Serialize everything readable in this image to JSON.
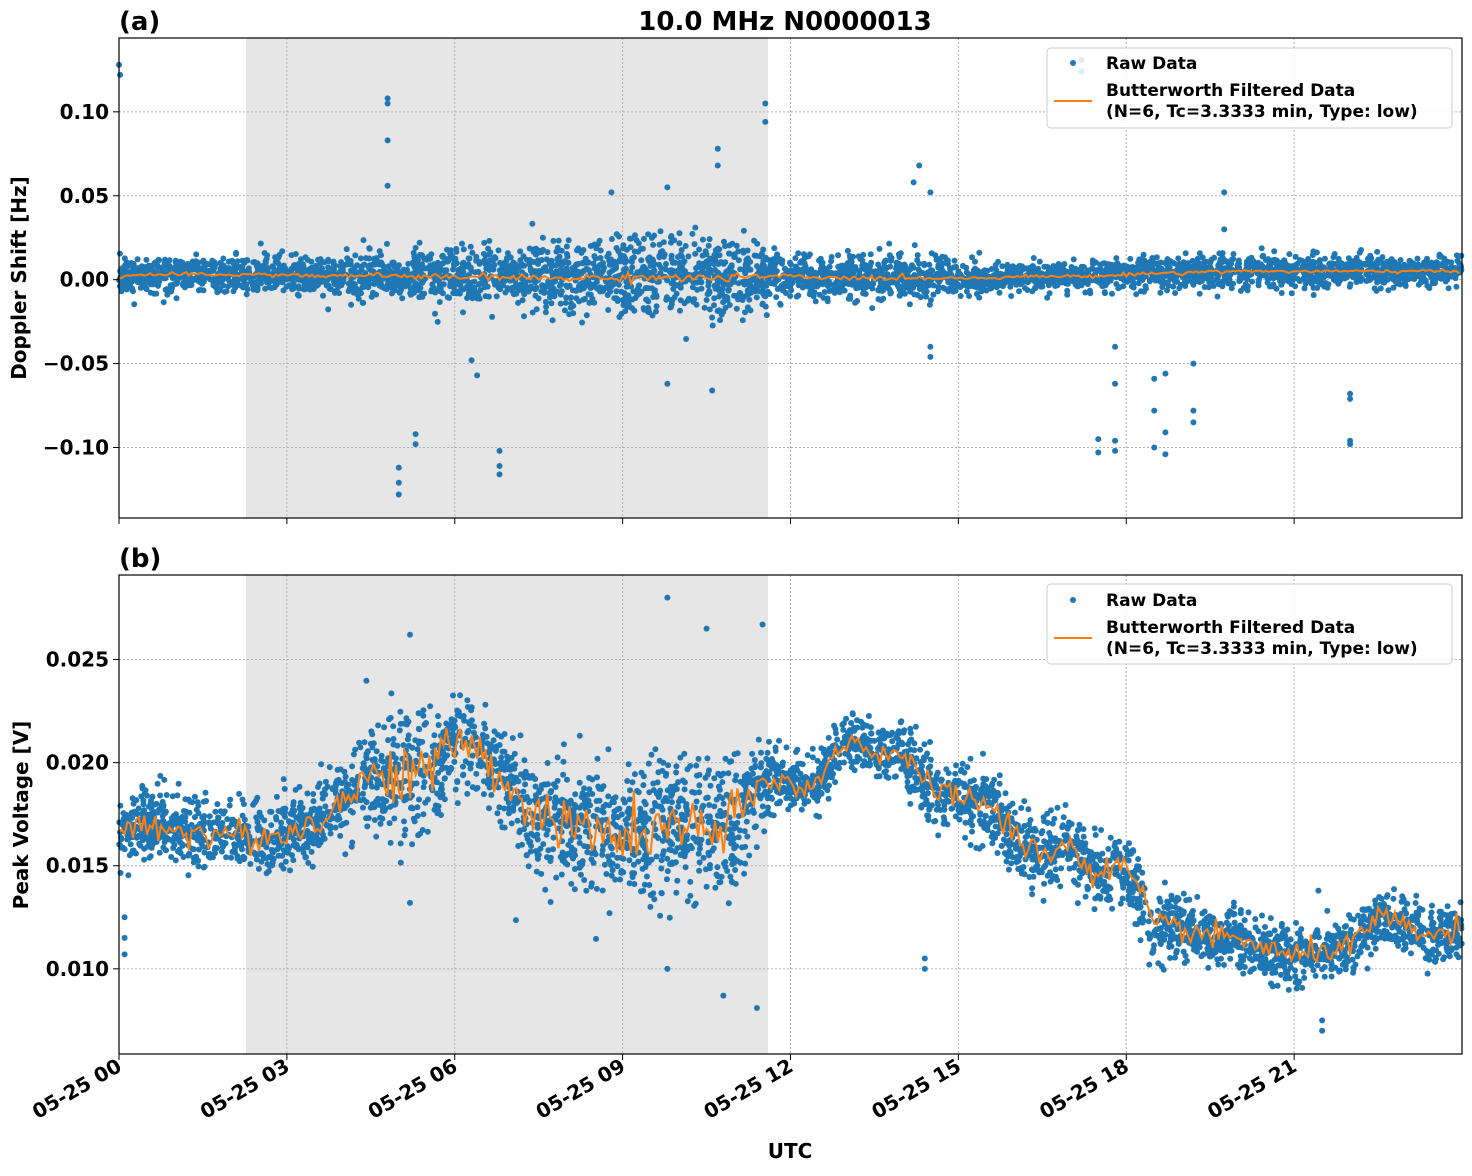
{
  "chart_data": [
    {
      "type": "scatter",
      "panel_label": "(a)",
      "title": "10.0 MHz N0000013",
      "xlabel": "",
      "ylabel": "Doppler Shift [Hz]",
      "xlim_hours": [
        0,
        24
      ],
      "ylim": [
        -0.142,
        0.144
      ],
      "yticks": [
        -0.1,
        -0.05,
        0.0,
        0.05,
        0.1
      ],
      "ytick_labels": [
        "−0.10",
        "−0.05",
        "0.00",
        "0.05",
        "0.10"
      ],
      "grid": true,
      "legend_position": "top-right",
      "shaded_interval_hours": [
        2.27,
        11.6
      ],
      "series": [
        {
          "name": "Raw Data",
          "kind": "scatter",
          "color": "#1f77b4"
        },
        {
          "name": "Butterworth Filtered Data\n(N=6, Tc=3.3333 min, Type: low)",
          "kind": "line",
          "color": "#ff7f0e"
        }
      ],
      "legend": {
        "raw": "Raw Data",
        "filtered_1": "Butterworth Filtered Data",
        "filtered_2": "(N=6, Tc=3.3333 min, Type: low)"
      },
      "hours": [
        0,
        0.5,
        1,
        1.5,
        2,
        2.5,
        3,
        3.5,
        4,
        4.5,
        5,
        5.5,
        6,
        6.5,
        7,
        7.5,
        8,
        8.5,
        9,
        9.5,
        10,
        10.5,
        11,
        11.5,
        12,
        12.5,
        13,
        13.5,
        14,
        14.5,
        15,
        15.5,
        16,
        16.5,
        17,
        17.5,
        18,
        18.5,
        19,
        19.5,
        20,
        20.5,
        21,
        21.5,
        22,
        22.5,
        23,
        23.5,
        24
      ],
      "filtered": [
        0.002,
        0.003,
        0.003,
        0.003,
        0.003,
        0.003,
        0.003,
        0.002,
        0.002,
        0.003,
        0.002,
        0.002,
        0.001,
        0.002,
        0.001,
        0.001,
        0.001,
        0.001,
        0.001,
        0.002,
        0.001,
        0.001,
        0.001,
        0.002,
        0.002,
        0.001,
        0.001,
        0.001,
        0.001,
        0.001,
        0.001,
        0.001,
        0.002,
        0.002,
        0.002,
        0.002,
        0.003,
        0.004,
        0.004,
        0.005,
        0.005,
        0.005,
        0.005,
        0.005,
        0.005,
        0.005,
        0.005,
        0.005,
        0.005
      ],
      "raw_spread": [
        0.009,
        0.009,
        0.009,
        0.01,
        0.01,
        0.011,
        0.011,
        0.011,
        0.012,
        0.012,
        0.013,
        0.014,
        0.015,
        0.016,
        0.017,
        0.018,
        0.02,
        0.02,
        0.02,
        0.021,
        0.022,
        0.022,
        0.021,
        0.016,
        0.01,
        0.01,
        0.012,
        0.014,
        0.01,
        0.01,
        0.008,
        0.007,
        0.007,
        0.007,
        0.007,
        0.008,
        0.009,
        0.009,
        0.009,
        0.009,
        0.009,
        0.009,
        0.009,
        0.008,
        0.008,
        0.008,
        0.008,
        0.008,
        0.008
      ],
      "outliers": [
        [
          0.0,
          0.128
        ],
        [
          0.02,
          0.122
        ],
        [
          4.8,
          0.108
        ],
        [
          4.8,
          0.105
        ],
        [
          4.8,
          0.083
        ],
        [
          4.8,
          0.056
        ],
        [
          5.3,
          -0.092
        ],
        [
          5.3,
          -0.098
        ],
        [
          5.0,
          -0.112
        ],
        [
          5.0,
          -0.121
        ],
        [
          5.0,
          -0.128
        ],
        [
          6.3,
          -0.048
        ],
        [
          6.4,
          -0.057
        ],
        [
          6.8,
          -0.102
        ],
        [
          6.8,
          -0.111
        ],
        [
          6.8,
          -0.116
        ],
        [
          8.8,
          0.052
        ],
        [
          9.8,
          0.055
        ],
        [
          9.8,
          -0.062
        ],
        [
          10.6,
          -0.066
        ],
        [
          10.7,
          0.078
        ],
        [
          10.7,
          0.068
        ],
        [
          11.55,
          0.105
        ],
        [
          11.55,
          0.094
        ],
        [
          14.2,
          0.058
        ],
        [
          14.3,
          0.068
        ],
        [
          14.5,
          0.052
        ],
        [
          14.5,
          -0.04
        ],
        [
          14.5,
          -0.046
        ],
        [
          17.2,
          0.131
        ],
        [
          17.2,
          0.124
        ],
        [
          17.5,
          -0.095
        ],
        [
          17.5,
          -0.103
        ],
        [
          17.8,
          -0.096
        ],
        [
          17.8,
          -0.102
        ],
        [
          17.8,
          -0.062
        ],
        [
          17.8,
          -0.04
        ],
        [
          18.5,
          -0.059
        ],
        [
          18.5,
          -0.078
        ],
        [
          18.5,
          -0.1
        ],
        [
          18.7,
          -0.091
        ],
        [
          18.7,
          -0.104
        ],
        [
          18.7,
          -0.056
        ],
        [
          19.2,
          -0.078
        ],
        [
          19.2,
          -0.085
        ],
        [
          19.2,
          -0.05
        ],
        [
          19.75,
          0.052
        ],
        [
          19.75,
          0.03
        ],
        [
          22.0,
          -0.068
        ],
        [
          22.0,
          -0.071
        ],
        [
          22.0,
          -0.096
        ],
        [
          22.0,
          -0.098
        ]
      ]
    },
    {
      "type": "scatter",
      "panel_label": "(b)",
      "xlabel": "UTC",
      "ylabel": "Peak Voltage [V]",
      "xlim_hours": [
        0,
        24
      ],
      "ylim": [
        0.00587,
        0.0291
      ],
      "yticks": [
        0.01,
        0.015,
        0.02,
        0.025
      ],
      "ytick_labels": [
        "0.010",
        "0.015",
        "0.020",
        "0.025"
      ],
      "xticks_hours": [
        0,
        3,
        6,
        9,
        12,
        15,
        18,
        21
      ],
      "xtick_labels": [
        "05-25 00",
        "05-25 03",
        "05-25 06",
        "05-25 09",
        "05-25 12",
        "05-25 15",
        "05-25 18",
        "05-25 21"
      ],
      "grid": true,
      "legend_position": "top-right",
      "shaded_interval_hours": [
        2.27,
        11.6
      ],
      "series": [
        {
          "name": "Raw Data",
          "kind": "scatter",
          "color": "#1f77b4"
        },
        {
          "name": "Butterworth Filtered Data\n(N=6, Tc=3.3333 min, Type: low)",
          "kind": "line",
          "color": "#ff7f0e"
        }
      ],
      "legend": {
        "raw": "Raw Data",
        "filtered_1": "Butterworth Filtered Data",
        "filtered_2": "(N=6, Tc=3.3333 min, Type: low)"
      },
      "hours": [
        0,
        0.5,
        1,
        1.5,
        2,
        2.5,
        3,
        3.5,
        4,
        4.5,
        5,
        5.5,
        6,
        6.5,
        7,
        7.5,
        8,
        8.5,
        9,
        9.5,
        10,
        10.5,
        11,
        11.5,
        12,
        12.5,
        13,
        13.5,
        14,
        14.5,
        15,
        15.5,
        16,
        16.5,
        17,
        17.5,
        18,
        18.5,
        19,
        19.5,
        20,
        20.5,
        21,
        21.5,
        22,
        22.5,
        23,
        23.5,
        24
      ],
      "filtered": [
        0.0165,
        0.017,
        0.0168,
        0.0165,
        0.0165,
        0.0163,
        0.0165,
        0.0172,
        0.018,
        0.0195,
        0.0195,
        0.0195,
        0.021,
        0.0205,
        0.0185,
        0.0175,
        0.017,
        0.0165,
        0.0165,
        0.0165,
        0.017,
        0.0165,
        0.017,
        0.019,
        0.019,
        0.019,
        0.0212,
        0.0205,
        0.0205,
        0.0185,
        0.0185,
        0.018,
        0.0165,
        0.0155,
        0.016,
        0.0145,
        0.015,
        0.012,
        0.012,
        0.0115,
        0.0115,
        0.011,
        0.0105,
        0.011,
        0.011,
        0.0125,
        0.012,
        0.0115,
        0.012
      ],
      "raw_spread": [
        0.0015,
        0.0015,
        0.0015,
        0.0015,
        0.0015,
        0.0015,
        0.0015,
        0.0016,
        0.0018,
        0.0025,
        0.0028,
        0.0028,
        0.0022,
        0.002,
        0.0022,
        0.0025,
        0.0025,
        0.0027,
        0.0027,
        0.003,
        0.003,
        0.003,
        0.0032,
        0.0018,
        0.0012,
        0.0012,
        0.0012,
        0.0013,
        0.0014,
        0.0016,
        0.0015,
        0.0015,
        0.0015,
        0.0015,
        0.0015,
        0.0015,
        0.0016,
        0.0014,
        0.0013,
        0.0013,
        0.0013,
        0.0013,
        0.0013,
        0.0012,
        0.0012,
        0.0012,
        0.0012,
        0.0012,
        0.0012
      ],
      "outliers": [
        [
          0.1,
          0.0107
        ],
        [
          0.1,
          0.0115
        ],
        [
          0.1,
          0.0125
        ],
        [
          5.2,
          0.0262
        ],
        [
          5.2,
          0.0132
        ],
        [
          9.8,
          0.028
        ],
        [
          9.8,
          0.01
        ],
        [
          10.5,
          0.0265
        ],
        [
          10.8,
          0.0087
        ],
        [
          11.4,
          0.0081
        ],
        [
          11.5,
          0.0267
        ],
        [
          14.4,
          0.01
        ],
        [
          14.4,
          0.0105
        ],
        [
          21.5,
          0.007
        ],
        [
          21.5,
          0.0075
        ]
      ]
    }
  ]
}
